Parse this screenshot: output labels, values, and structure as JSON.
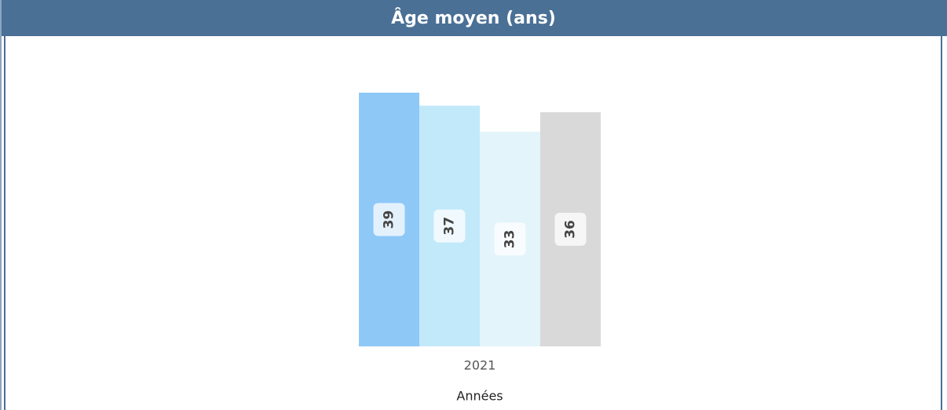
{
  "chart_data": {
    "type": "bar",
    "title": "Âge moyen (ans)",
    "categories": [
      "2021"
    ],
    "xlabel": "Années",
    "series": [
      {
        "color": "#8ec8f7",
        "values": [
          39
        ]
      },
      {
        "color": "#c2e9fa",
        "values": [
          37
        ]
      },
      {
        "color": "#e3f4fb",
        "values": [
          33
        ]
      },
      {
        "color": "#d9d9d9",
        "values": [
          36
        ]
      }
    ]
  }
}
